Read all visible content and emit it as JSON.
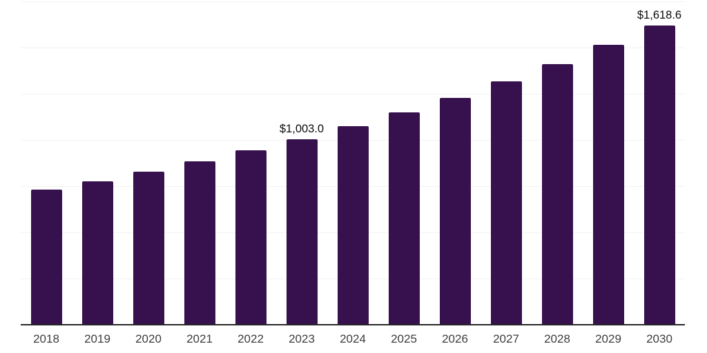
{
  "chart_data": {
    "type": "bar",
    "title": "",
    "xlabel": "",
    "ylabel": "",
    "categories": [
      "2018",
      "2019",
      "2020",
      "2021",
      "2022",
      "2023",
      "2024",
      "2025",
      "2026",
      "2027",
      "2028",
      "2029",
      "2030"
    ],
    "values": [
      731,
      776,
      828,
      884,
      944,
      1003.0,
      1074,
      1149,
      1227,
      1317,
      1410,
      1515,
      1618.6
    ],
    "data_labels": [
      "",
      "",
      "",
      "",
      "",
      "$1,003.0",
      "",
      "",
      "",
      "",
      "",
      "",
      "$1,618.6"
    ],
    "ylim": [
      0,
      1750
    ],
    "grid_step": 250,
    "grid": true,
    "legend_position": "none",
    "colors": {
      "bar": "#36114E",
      "axis_line": "#262626",
      "tick_label": "#3c3c3c",
      "data_label": "#0a0a0a",
      "gridline": "#f2f2f2",
      "background": "#ffffff"
    }
  }
}
